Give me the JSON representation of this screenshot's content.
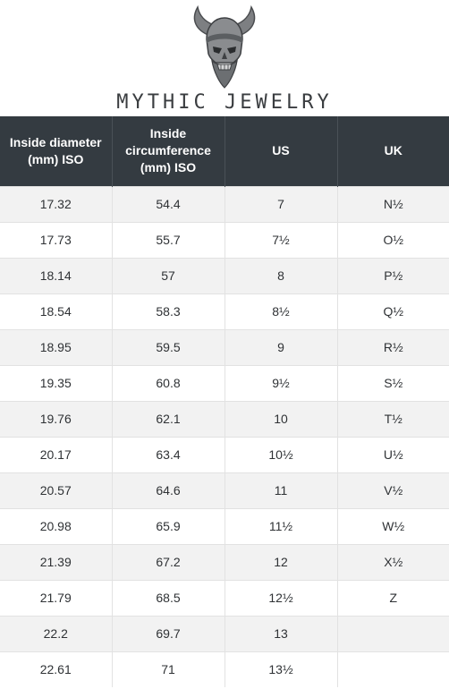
{
  "brand": {
    "name": "MYTHIC JEWELRY",
    "logo_icon": "horned-skull-icon"
  },
  "table": {
    "headers": [
      "Inside diameter (mm) ISO",
      "Inside circumference (mm) ISO",
      "US",
      "UK"
    ],
    "rows": [
      [
        "17.32",
        "54.4",
        "7",
        "N½"
      ],
      [
        "17.73",
        "55.7",
        "7½",
        "O½"
      ],
      [
        "18.14",
        "57",
        "8",
        "P½"
      ],
      [
        "18.54",
        "58.3",
        "8½",
        "Q½"
      ],
      [
        "18.95",
        "59.5",
        "9",
        "R½"
      ],
      [
        "19.35",
        "60.8",
        "9½",
        "S½"
      ],
      [
        "19.76",
        "62.1",
        "10",
        "T½"
      ],
      [
        "20.17",
        "63.4",
        "10½",
        "U½"
      ],
      [
        "20.57",
        "64.6",
        "11",
        "V½"
      ],
      [
        "20.98",
        "65.9",
        "11½",
        "W½"
      ],
      [
        "21.39",
        "67.2",
        "12",
        "X½"
      ],
      [
        "21.79",
        "68.5",
        "12½",
        "Z"
      ],
      [
        "22.2",
        "69.7",
        "13",
        ""
      ],
      [
        "22.61",
        "71",
        "13½",
        ""
      ]
    ]
  },
  "colors": {
    "header_bg": "#343b41",
    "header_text": "#ffffff",
    "row_stripe": "#f2f2f2",
    "brand_text": "#3a3d40"
  }
}
